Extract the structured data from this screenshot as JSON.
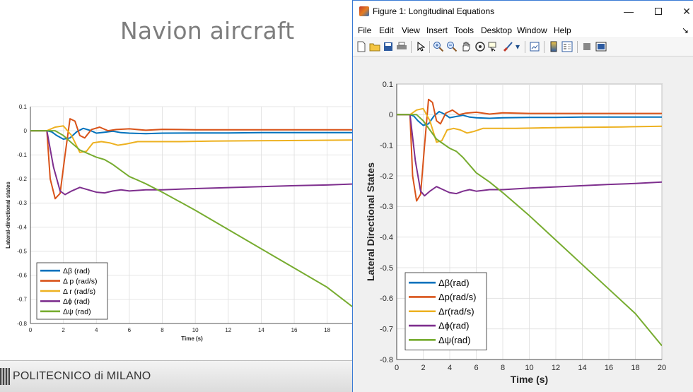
{
  "slide": {
    "title": "Navion aircraft",
    "footer": "POLITECNICO di MILANO"
  },
  "window": {
    "title": "Figure 1: Longitudinal Equations",
    "controls": {
      "minimize": "—",
      "close": "✕"
    },
    "menu": [
      "File",
      "Edit",
      "View",
      "Insert",
      "Tools",
      "Desktop",
      "Window",
      "Help"
    ],
    "menu_overflow": "↘",
    "toolbar": [
      "new-figure",
      "open-file",
      "save",
      "print",
      "edit-plot",
      "zoom-in",
      "zoom-out",
      "pan",
      "rotate-3d",
      "data-cursor",
      "brush",
      "link-plot",
      "insert-colorbar",
      "insert-legend",
      "hide-plot-tools",
      "show-plot-tools"
    ]
  },
  "colors": {
    "beta": "#0072BD",
    "p": "#D95319",
    "r": "#EDB120",
    "phi": "#7E2F8E",
    "psi": "#77AC30"
  },
  "chart_data": [
    {
      "id": "slide-chart",
      "type": "line",
      "xlabel": "Time (s)",
      "ylabel": "Lateral-directional states",
      "xlim": [
        0,
        19.6
      ],
      "ylim": [
        -0.8,
        0.1
      ],
      "xticks": [
        0,
        2,
        4,
        6,
        8,
        10,
        12,
        14,
        16,
        18
      ],
      "yticks": [
        0.1,
        0,
        -0.1,
        -0.2,
        -0.3,
        -0.4,
        -0.5,
        -0.6,
        -0.7,
        -0.8
      ],
      "grid": true,
      "legend_position": "bottom-left",
      "series": [
        {
          "key": "beta",
          "name": "Δβ (rad)"
        },
        {
          "key": "p",
          "name": "Δ p (rad/s)"
        },
        {
          "key": "r",
          "name": "Δ r (rad/s)"
        },
        {
          "key": "phi",
          "name": "Δϕ (rad)"
        },
        {
          "key": "psi",
          "name": "Δψ (rad)"
        }
      ]
    },
    {
      "id": "window-chart",
      "type": "line",
      "xlabel": "Time (s)",
      "ylabel": "Lateral Directional States",
      "xlim": [
        0,
        20
      ],
      "ylim": [
        -0.8,
        0.1
      ],
      "xticks": [
        0,
        2,
        4,
        6,
        8,
        10,
        12,
        14,
        16,
        18,
        20
      ],
      "yticks": [
        0.1,
        0,
        -0.1,
        -0.2,
        -0.3,
        -0.4,
        -0.5,
        -0.6,
        -0.7,
        -0.8
      ],
      "grid": true,
      "legend_position": "bottom-left",
      "series": [
        {
          "key": "beta",
          "name": "Δβ(rad)"
        },
        {
          "key": "p",
          "name": "Δp(rad/s)"
        },
        {
          "key": "r",
          "name": "Δr(rad/s)"
        },
        {
          "key": "phi",
          "name": "Δϕ(rad)"
        },
        {
          "key": "psi",
          "name": "Δψ(rad)"
        }
      ]
    }
  ],
  "series_points": {
    "beta": [
      [
        0,
        0
      ],
      [
        1,
        0
      ],
      [
        1.3,
        -0.005
      ],
      [
        1.6,
        -0.02
      ],
      [
        2,
        -0.035
      ],
      [
        2.4,
        -0.03
      ],
      [
        2.8,
        -0.005
      ],
      [
        3.2,
        0.01
      ],
      [
        3.6,
        0.002
      ],
      [
        4,
        -0.01
      ],
      [
        4.5,
        -0.006
      ],
      [
        5,
        -0.002
      ],
      [
        5.5,
        -0.008
      ],
      [
        6,
        -0.01
      ],
      [
        7,
        -0.012
      ],
      [
        8,
        -0.01
      ],
      [
        10,
        -0.009
      ],
      [
        12,
        -0.009
      ],
      [
        14,
        -0.008
      ],
      [
        16,
        -0.008
      ],
      [
        18,
        -0.008
      ],
      [
        20,
        -0.008
      ]
    ],
    "p": [
      [
        0,
        0
      ],
      [
        1,
        0
      ],
      [
        1.2,
        -0.2
      ],
      [
        1.5,
        -0.282
      ],
      [
        1.8,
        -0.26
      ],
      [
        2.1,
        -0.1
      ],
      [
        2.4,
        0.05
      ],
      [
        2.7,
        0.04
      ],
      [
        3.0,
        -0.02
      ],
      [
        3.3,
        -0.03
      ],
      [
        3.7,
        0.005
      ],
      [
        4.2,
        0.015
      ],
      [
        4.7,
        0
      ],
      [
        5.2,
        0.005
      ],
      [
        6,
        0.008
      ],
      [
        7,
        0.002
      ],
      [
        8,
        0.006
      ],
      [
        10,
        0.004
      ],
      [
        12,
        0.004
      ],
      [
        14,
        0.004
      ],
      [
        16,
        0.004
      ],
      [
        18,
        0.004
      ],
      [
        20,
        0.004
      ]
    ],
    "r": [
      [
        0,
        0
      ],
      [
        1,
        0
      ],
      [
        1.5,
        0.015
      ],
      [
        2,
        0.02
      ],
      [
        2.5,
        -0.02
      ],
      [
        3,
        -0.09
      ],
      [
        3.4,
        -0.085
      ],
      [
        3.8,
        -0.05
      ],
      [
        4.3,
        -0.045
      ],
      [
        4.8,
        -0.05
      ],
      [
        5.3,
        -0.06
      ],
      [
        5.8,
        -0.055
      ],
      [
        6.5,
        -0.045
      ],
      [
        7.5,
        -0.045
      ],
      [
        9,
        -0.045
      ],
      [
        11,
        -0.043
      ],
      [
        13,
        -0.042
      ],
      [
        15,
        -0.041
      ],
      [
        17,
        -0.04
      ],
      [
        20,
        -0.038
      ]
    ],
    "phi": [
      [
        0,
        0
      ],
      [
        1,
        0
      ],
      [
        1.4,
        -0.15
      ],
      [
        1.8,
        -0.25
      ],
      [
        2.1,
        -0.265
      ],
      [
        2.5,
        -0.25
      ],
      [
        3.0,
        -0.235
      ],
      [
        3.5,
        -0.245
      ],
      [
        4,
        -0.255
      ],
      [
        4.5,
        -0.258
      ],
      [
        5,
        -0.25
      ],
      [
        5.5,
        -0.245
      ],
      [
        6,
        -0.25
      ],
      [
        7,
        -0.245
      ],
      [
        8,
        -0.245
      ],
      [
        10,
        -0.24
      ],
      [
        12,
        -0.236
      ],
      [
        14,
        -0.232
      ],
      [
        16,
        -0.228
      ],
      [
        18,
        -0.225
      ],
      [
        20,
        -0.22
      ]
    ],
    "psi": [
      [
        0,
        0
      ],
      [
        1,
        0
      ],
      [
        1.5,
        0
      ],
      [
        2,
        -0.02
      ],
      [
        2.5,
        -0.05
      ],
      [
        3,
        -0.08
      ],
      [
        3.5,
        -0.095
      ],
      [
        4,
        -0.11
      ],
      [
        4.5,
        -0.12
      ],
      [
        5,
        -0.14
      ],
      [
        5.5,
        -0.165
      ],
      [
        6,
        -0.19
      ],
      [
        6.5,
        -0.205
      ],
      [
        7,
        -0.22
      ],
      [
        8,
        -0.255
      ],
      [
        10,
        -0.33
      ],
      [
        12,
        -0.41
      ],
      [
        14,
        -0.49
      ],
      [
        16,
        -0.57
      ],
      [
        18,
        -0.65
      ],
      [
        20,
        -0.755
      ]
    ]
  }
}
